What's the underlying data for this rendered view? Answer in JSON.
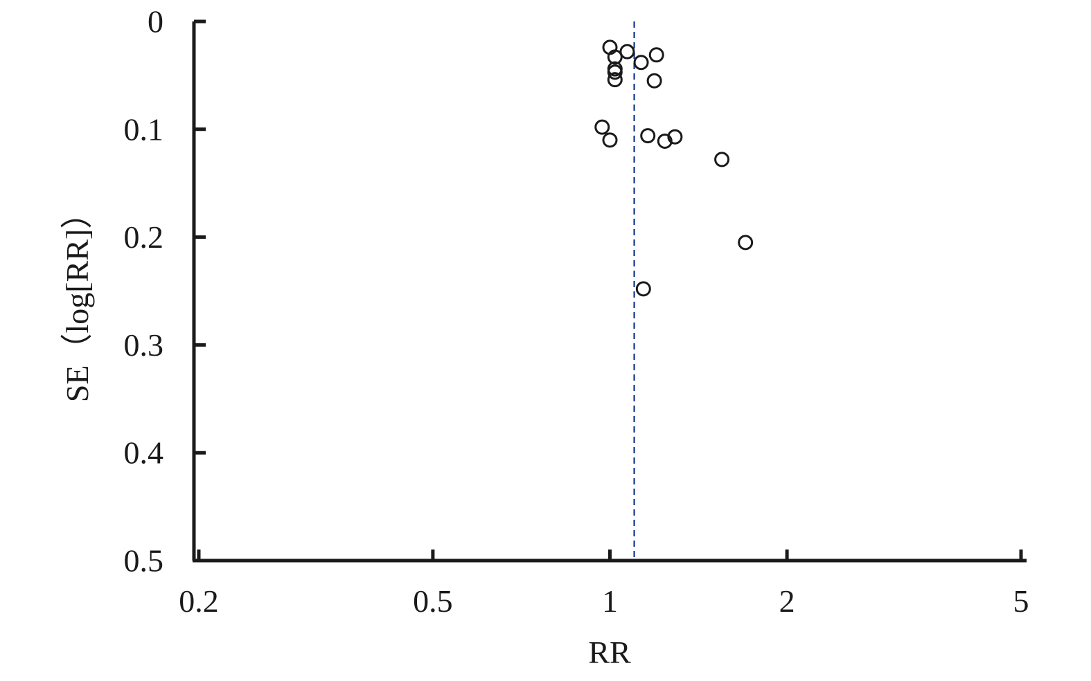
{
  "chart_data": {
    "type": "scatter",
    "xlabel": "RR",
    "ylabel": "SE（log[RR]）",
    "x_scale": "log",
    "xlim": [
      0.2,
      5
    ],
    "ylim": [
      0,
      0.5
    ],
    "y_inverted": true,
    "x_ticks": [
      0.2,
      0.5,
      1,
      2,
      5
    ],
    "x_tick_labels": [
      "0.2",
      "0.5",
      "1",
      "2",
      "5"
    ],
    "y_ticks": [
      0,
      0.1,
      0.2,
      0.3,
      0.4,
      0.5
    ],
    "y_tick_labels": [
      "0",
      "0.1",
      "0.2",
      "0.3",
      "0.4",
      "0.5"
    ],
    "reference_line": {
      "x": 1.1,
      "style": "dashed",
      "color": "#2b4c9b"
    },
    "grid": false,
    "marker": "open-circle",
    "points": [
      {
        "x": 1.0,
        "y": 0.024
      },
      {
        "x": 1.07,
        "y": 0.028
      },
      {
        "x": 1.2,
        "y": 0.031
      },
      {
        "x": 1.02,
        "y": 0.033
      },
      {
        "x": 1.13,
        "y": 0.038
      },
      {
        "x": 1.02,
        "y": 0.044
      },
      {
        "x": 1.02,
        "y": 0.047
      },
      {
        "x": 1.02,
        "y": 0.054
      },
      {
        "x": 1.19,
        "y": 0.055
      },
      {
        "x": 0.97,
        "y": 0.098
      },
      {
        "x": 1.16,
        "y": 0.106
      },
      {
        "x": 1.29,
        "y": 0.107
      },
      {
        "x": 1.0,
        "y": 0.11
      },
      {
        "x": 1.24,
        "y": 0.111
      },
      {
        "x": 1.55,
        "y": 0.128
      },
      {
        "x": 1.7,
        "y": 0.205
      },
      {
        "x": 1.14,
        "y": 0.248
      }
    ]
  }
}
